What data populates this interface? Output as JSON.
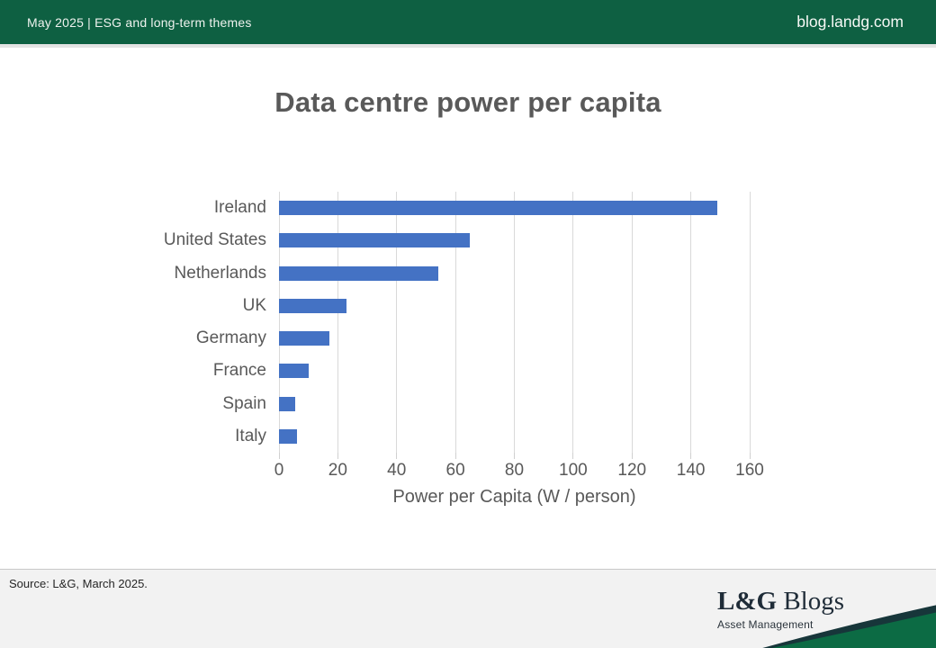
{
  "header": {
    "left": "May 2025 | ESG and long-term themes",
    "right": "blog.landg.com"
  },
  "chart_data": {
    "type": "bar",
    "orientation": "horizontal",
    "title": "Data centre power per capita",
    "categories": [
      "Ireland",
      "United States",
      "Netherlands",
      "UK",
      "Germany",
      "France",
      "Spain",
      "Italy"
    ],
    "values": [
      149,
      65,
      54,
      23,
      17,
      10,
      5.5,
      6
    ],
    "xlabel": "Power per Capita (W / person)",
    "xlim": [
      0,
      160
    ],
    "xticks": [
      0,
      20,
      40,
      60,
      80,
      100,
      120,
      140,
      160
    ],
    "bar_color": "#4472c4",
    "grid": true,
    "legend": false
  },
  "footer": {
    "source": "Source: L&G, March 2025.",
    "logo_bold": "L&G",
    "logo_rest": " Blogs",
    "logo_subtitle": "Asset Management"
  },
  "colors": {
    "header_green": "#0e6042",
    "swoosh_green": "#0c6b44",
    "swoosh_dark": "#17363a",
    "bar_blue": "#4472c4",
    "title_gray": "#595959",
    "footer_bg": "#f2f2f2"
  }
}
